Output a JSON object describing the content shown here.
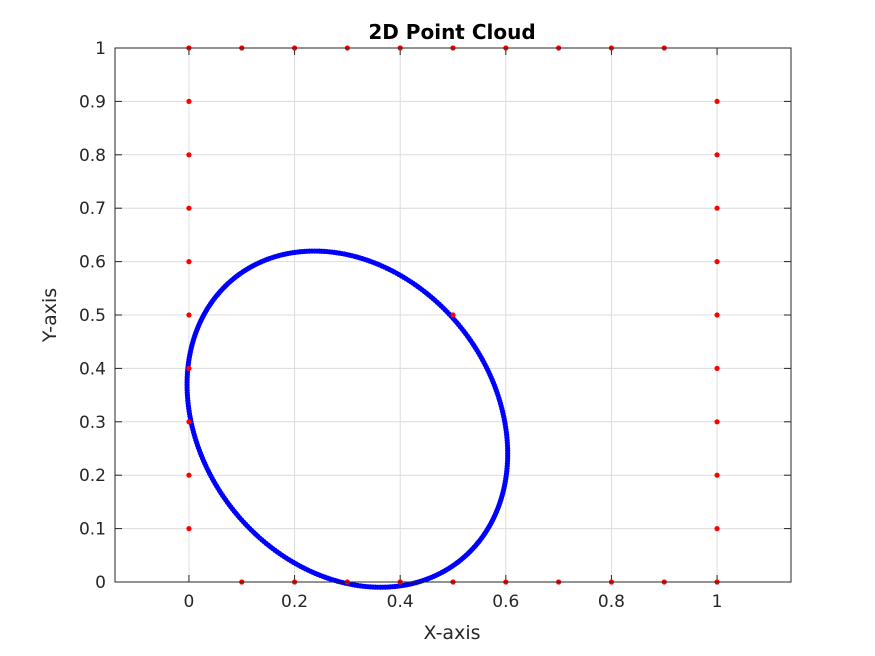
{
  "chart_data": {
    "type": "scatter",
    "title": "2D Point Cloud",
    "xlabel": "X-axis",
    "ylabel": "Y-axis",
    "xlim": [
      -0.14,
      1.14
    ],
    "ylim": [
      0,
      1
    ],
    "xticks": [
      0,
      0.2,
      0.4,
      0.6,
      0.8,
      1
    ],
    "xtick_labels": [
      "0",
      "0.2",
      "0.4",
      "0.6",
      "0.8",
      "1"
    ],
    "yticks": [
      0,
      0.1,
      0.2,
      0.3,
      0.4,
      0.5,
      0.6,
      0.7,
      0.8,
      0.9,
      1
    ],
    "ytick_labels": [
      "0",
      "0.1",
      "0.2",
      "0.3",
      "0.4",
      "0.5",
      "0.6",
      "0.7",
      "0.8",
      "0.9",
      "1"
    ],
    "grid": true,
    "series": [
      {
        "color": "#ff0000",
        "marker": "dot",
        "points": [
          [
            0,
            1
          ],
          [
            0.1,
            1
          ],
          [
            0.2,
            1
          ],
          [
            0.3,
            1
          ],
          [
            0.4,
            1
          ],
          [
            0.5,
            1
          ],
          [
            0.6,
            1
          ],
          [
            0.7,
            1
          ],
          [
            0.8,
            1
          ],
          [
            0.9,
            1
          ],
          [
            0,
            0.9
          ],
          [
            0,
            0.8
          ],
          [
            0,
            0.7
          ],
          [
            0,
            0.6
          ],
          [
            0,
            0.5
          ],
          [
            0,
            0.4
          ],
          [
            0,
            0.3
          ],
          [
            0,
            0.2
          ],
          [
            0,
            0.1
          ],
          [
            1,
            0.9
          ],
          [
            1,
            0.8
          ],
          [
            1,
            0.7
          ],
          [
            1,
            0.6
          ],
          [
            1,
            0.5
          ],
          [
            1,
            0.4
          ],
          [
            1,
            0.3
          ],
          [
            1,
            0.2
          ],
          [
            1,
            0.1
          ],
          [
            1,
            0
          ],
          [
            0.1,
            0
          ],
          [
            0.2,
            0
          ],
          [
            0.3,
            0
          ],
          [
            0.4,
            0
          ],
          [
            0.5,
            0
          ],
          [
            0.6,
            0
          ],
          [
            0.7,
            0
          ],
          [
            0.8,
            0
          ],
          [
            0.9,
            0
          ],
          [
            0.5,
            0.5
          ]
        ]
      },
      {
        "color": "#0000ff",
        "marker": "dot",
        "shape": "ellipse",
        "center": [
          0.3,
          0.305
        ],
        "semi_axes": [
          0.34,
          0.275
        ],
        "rotation_deg": -50,
        "n_points": 400
      }
    ]
  }
}
